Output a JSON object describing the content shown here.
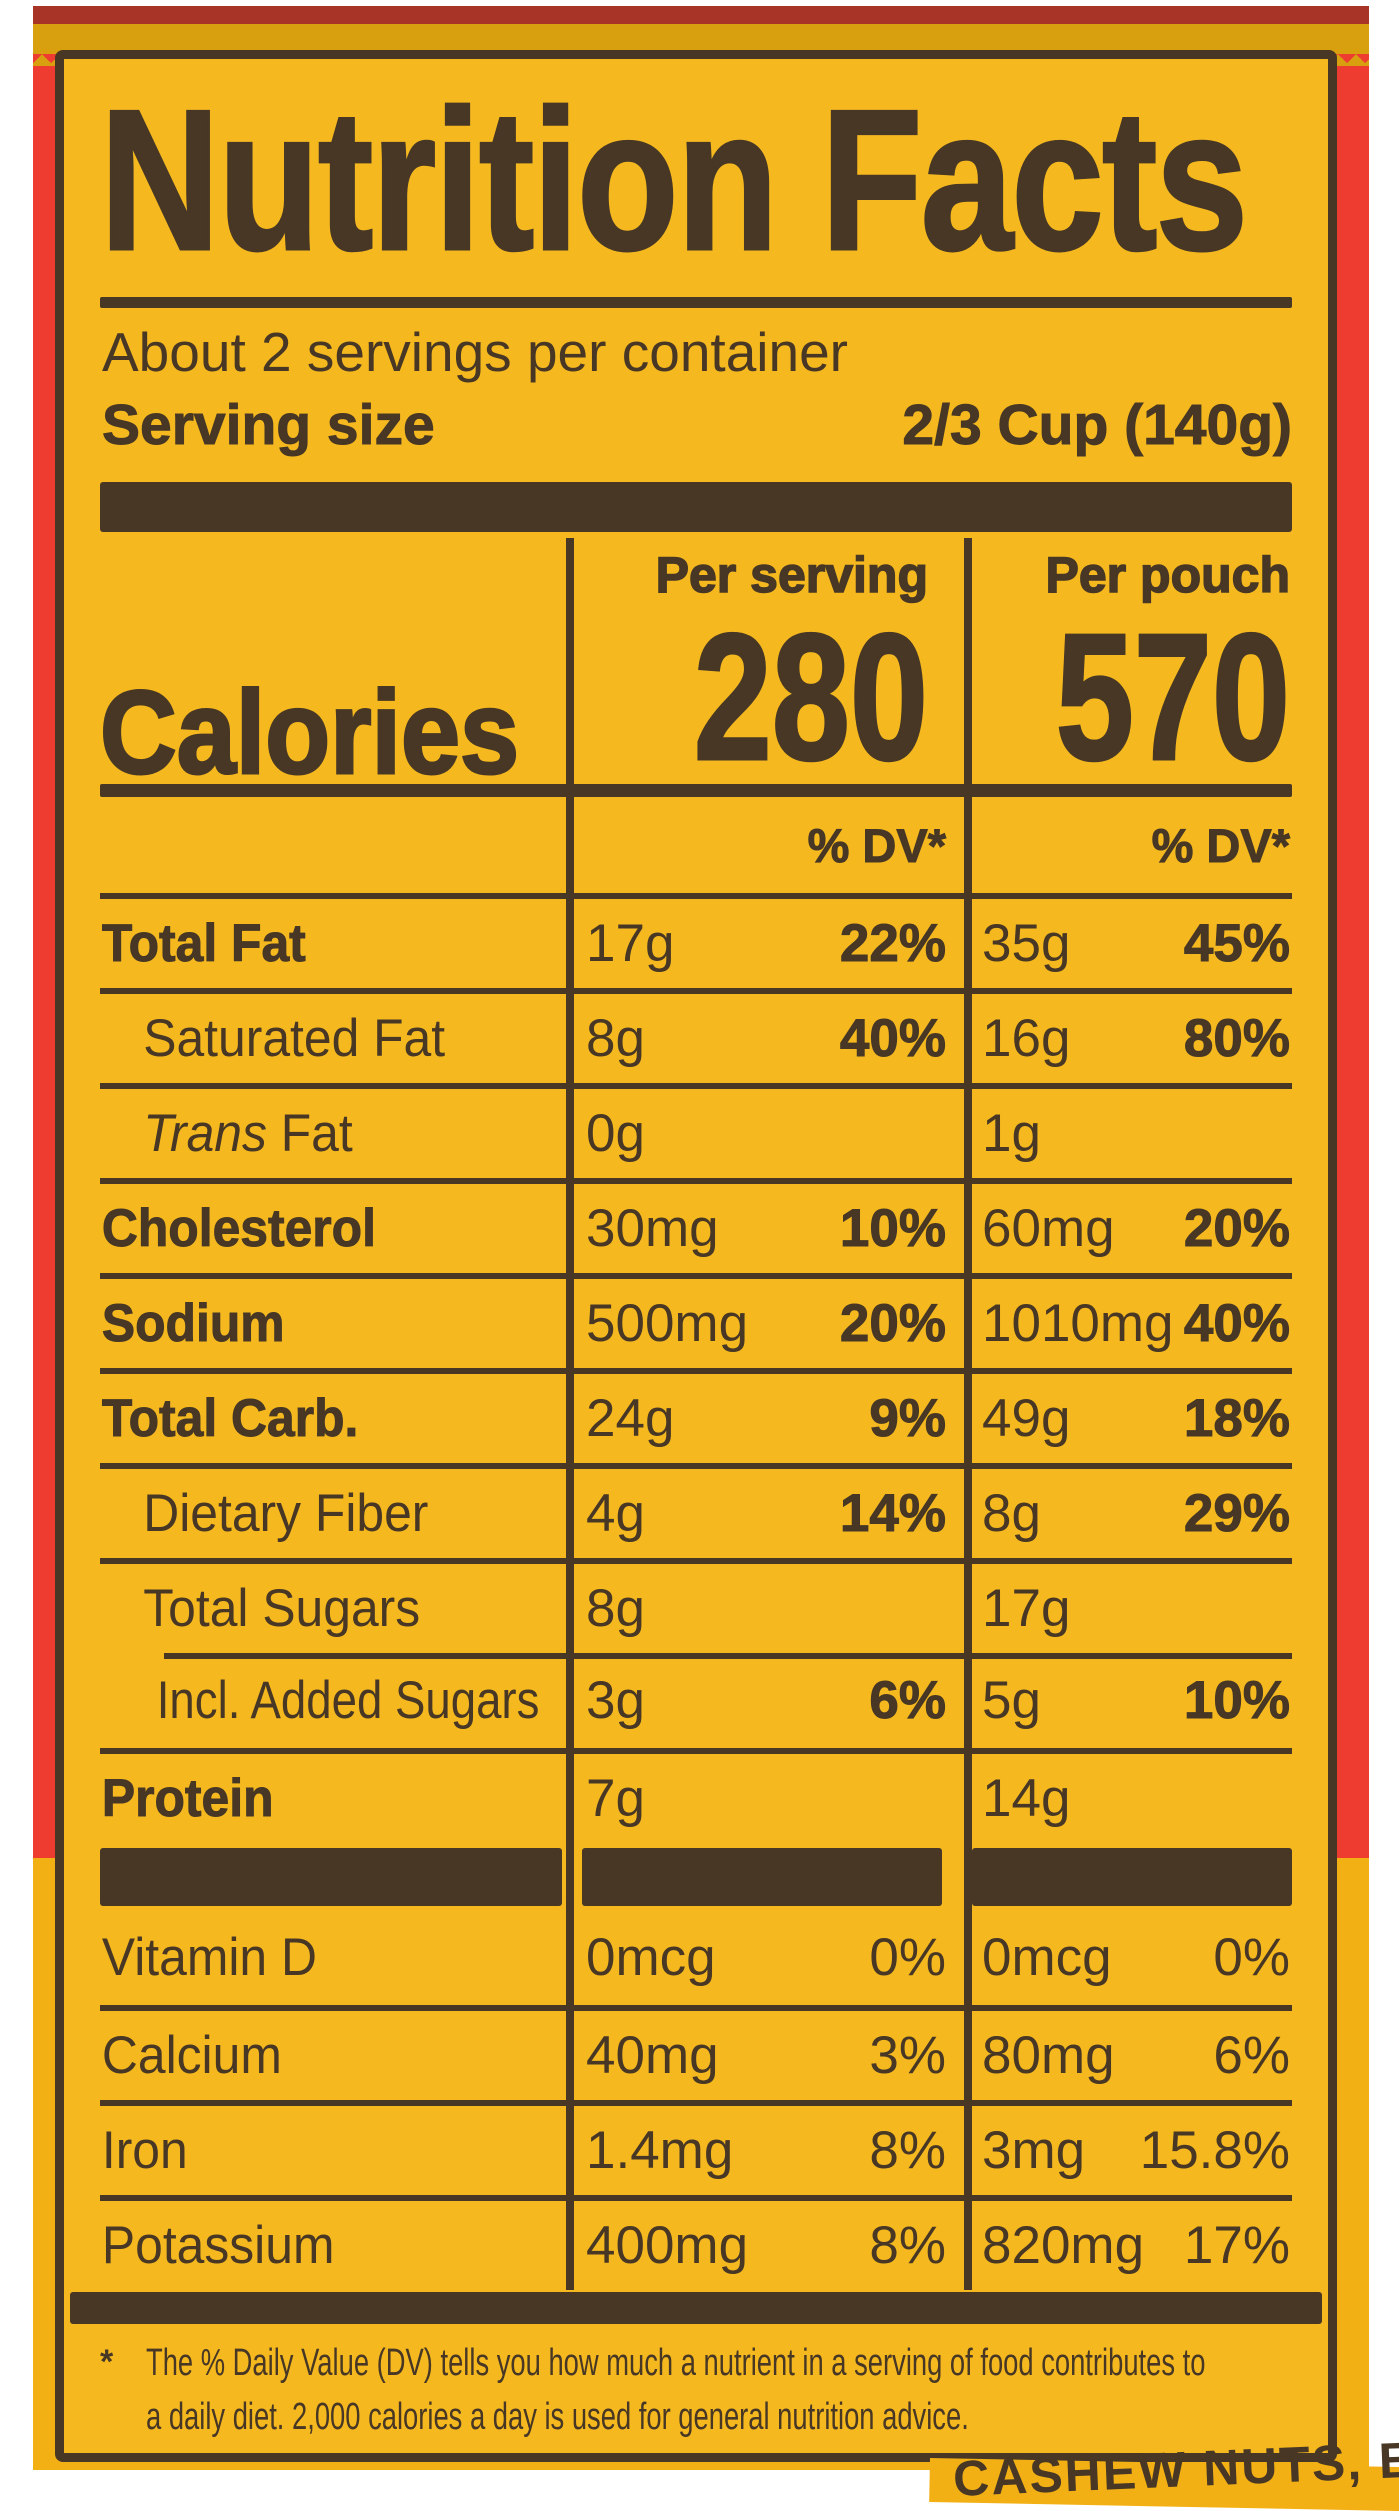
{
  "label": {
    "title": "Nutrition Facts",
    "servings_per_container": "About 2 servings per container",
    "serving_size_label": "Serving size",
    "serving_size_value": "2/3 Cup (140g)",
    "calories_label": "Calories",
    "columns": [
      {
        "header": "Per serving",
        "calories": "280",
        "dv_header": "% DV*"
      },
      {
        "header": "Per pouch",
        "calories": "570",
        "dv_header": "% DV*"
      }
    ],
    "rows": [
      {
        "name": "Total Fat",
        "bold": true,
        "indent": 0,
        "serving_amount": "17g",
        "serving_dv": "22%",
        "pouch_amount": "35g",
        "pouch_dv": "45%"
      },
      {
        "name": "Saturated Fat",
        "bold": false,
        "indent": 1,
        "serving_amount": "8g",
        "serving_dv": "40%",
        "pouch_amount": "16g",
        "pouch_dv": "80%"
      },
      {
        "name": "Trans Fat",
        "bold": false,
        "indent": 1,
        "first_word_italic": true,
        "serving_amount": "0g",
        "serving_dv": "",
        "pouch_amount": "1g",
        "pouch_dv": ""
      },
      {
        "name": "Cholesterol",
        "bold": true,
        "indent": 0,
        "serving_amount": "30mg",
        "serving_dv": "10%",
        "pouch_amount": "60mg",
        "pouch_dv": "20%"
      },
      {
        "name": "Sodium",
        "bold": true,
        "indent": 0,
        "serving_amount": "500mg",
        "serving_dv": "20%",
        "pouch_amount": "1010mg",
        "pouch_dv": "40%"
      },
      {
        "name": "Total Carb.",
        "bold": true,
        "indent": 0,
        "serving_amount": "24g",
        "serving_dv": "9%",
        "pouch_amount": "49g",
        "pouch_dv": "18%"
      },
      {
        "name": "Dietary Fiber",
        "bold": false,
        "indent": 1,
        "serving_amount": "4g",
        "serving_dv": "14%",
        "pouch_amount": "8g",
        "pouch_dv": "29%"
      },
      {
        "name": "Total Sugars",
        "bold": false,
        "indent": 1,
        "serving_amount": "8g",
        "serving_dv": "",
        "pouch_amount": "17g",
        "pouch_dv": ""
      },
      {
        "name": "Incl. Added Sugars",
        "bold": false,
        "indent": 2,
        "sep_indent": true,
        "serving_amount": "3g",
        "serving_dv": "6%",
        "pouch_amount": "5g",
        "pouch_dv": "10%"
      },
      {
        "name": "Protein",
        "bold": true,
        "indent": 0,
        "serving_amount": "7g",
        "serving_dv": "",
        "pouch_amount": "14g",
        "pouch_dv": ""
      }
    ],
    "micros": [
      {
        "name": "Vitamin D",
        "serving_amount": "0mcg",
        "serving_dv": "0%",
        "pouch_amount": "0mcg",
        "pouch_dv": "0%"
      },
      {
        "name": "Calcium",
        "serving_amount": "40mg",
        "serving_dv": "3%",
        "pouch_amount": "80mg",
        "pouch_dv": "6%"
      },
      {
        "name": "Iron",
        "serving_amount": "1.4mg",
        "serving_dv": "8%",
        "pouch_amount": "3mg",
        "pouch_dv": "15.8%"
      },
      {
        "name": "Potassium",
        "serving_amount": "400mg",
        "serving_dv": "8%",
        "pouch_amount": "820mg",
        "pouch_dv": "17%"
      }
    ],
    "footnote_marker": "*",
    "footnote_lines": [
      "The % Daily Value (DV) tells you how much a nutrient in a serving of food contributes to",
      "a daily diet. 2,000 calories a day is used for general nutrition advice."
    ]
  },
  "package": {
    "partial_ingredients_text": "CASHEW NUTS, BUTTER"
  },
  "colors": {
    "ink": "#473724",
    "label_yellow": "#f5b91f",
    "pouch_red": "#ee3d30",
    "pouch_yellow": "#f2b015",
    "band_mustard": "#d8a00e",
    "seam_red": "#a83428"
  }
}
